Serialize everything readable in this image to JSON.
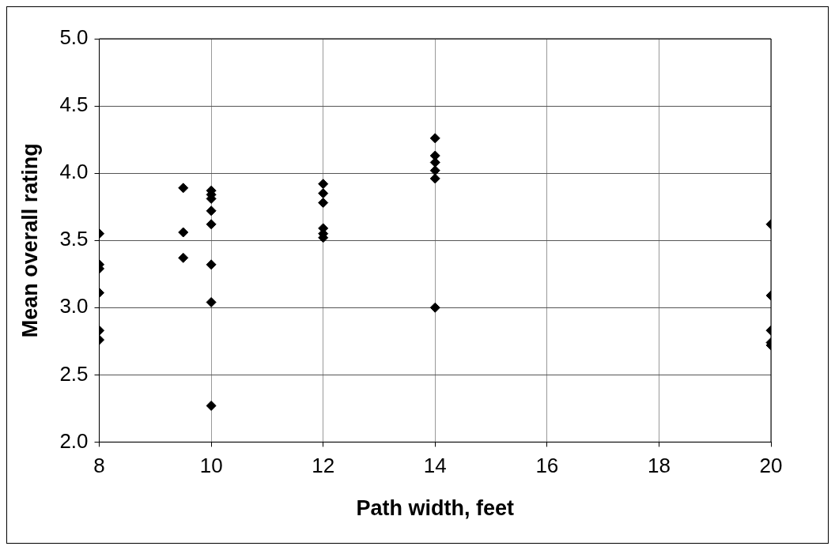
{
  "chart_data": {
    "type": "scatter",
    "xlabel": "Path width, feet",
    "ylabel": "Mean overall rating",
    "x": [
      8,
      8,
      8,
      8,
      8,
      8,
      9.5,
      9.5,
      9.5,
      10,
      10,
      10,
      10,
      10,
      10,
      10,
      10,
      12,
      12,
      12,
      12,
      12,
      12,
      14,
      14,
      14,
      14,
      14,
      14,
      20,
      20,
      20,
      20,
      20
    ],
    "values": [
      3.55,
      3.32,
      3.29,
      3.11,
      2.83,
      2.76,
      3.89,
      3.56,
      3.37,
      3.87,
      3.84,
      3.81,
      3.72,
      3.62,
      3.32,
      3.04,
      2.27,
      3.92,
      3.85,
      3.78,
      3.59,
      3.55,
      3.52,
      4.26,
      4.13,
      4.08,
      4.02,
      3.96,
      3.0,
      3.62,
      3.09,
      2.83,
      2.74,
      2.72
    ],
    "color": "#000000",
    "marker": "diamond",
    "xlim": [
      8,
      20
    ],
    "xticks": [
      8,
      10,
      12,
      14,
      16,
      18,
      20
    ],
    "ylim": [
      2.0,
      5.0
    ],
    "yticks": [
      {
        "value": 2,
        "label": "2.0"
      },
      {
        "value": 2.5,
        "label": "2.5"
      },
      {
        "value": 3,
        "label": "3.0"
      },
      {
        "value": 3.5,
        "label": "3.5"
      },
      {
        "value": 4,
        "label": "4.0"
      },
      {
        "value": 4.5,
        "label": "4.5"
      },
      {
        "value": 5,
        "label": "5.0"
      }
    ],
    "grid": true,
    "legend": false
  }
}
